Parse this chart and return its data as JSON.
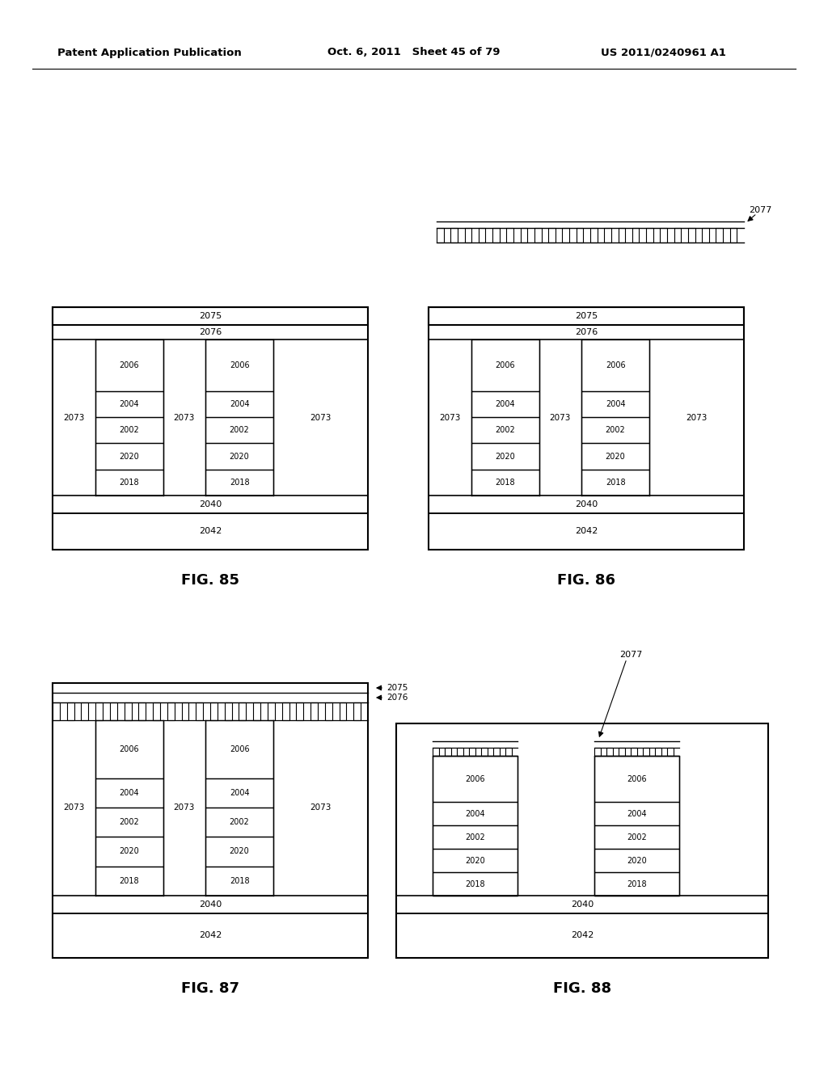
{
  "bg_color": "#ffffff",
  "header_left": "Patent Application Publication",
  "header_center": "Oct. 6, 2011   Sheet 45 of 79",
  "header_right": "US 2011/0240961 A1",
  "fig_labels": [
    "FIG. 85",
    "FIG. 86",
    "FIG. 87",
    "FIG. 88"
  ],
  "row_labels": [
    "2006",
    "2004",
    "2002",
    "2020",
    "2018"
  ],
  "col_sep_label": "2073",
  "band_2040": "2040",
  "band_2042": "2042",
  "band_2075": "2075",
  "band_2076": "2076",
  "label_2077": "2077"
}
